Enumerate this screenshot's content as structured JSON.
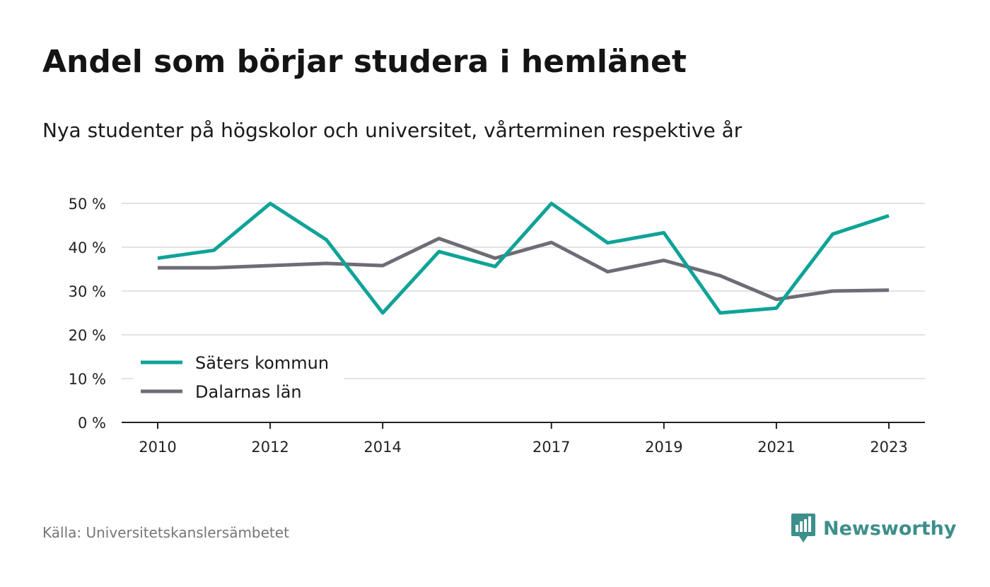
{
  "title": "Andel som börjar studera i hemlänet",
  "subtitle": "Nya studenter på högskolor och universitet, vårterminen respektive år",
  "source": "Källa: Universitetskanslersämbetet",
  "brand": {
    "name": "Newsworthy",
    "color": "#3d8f8b",
    "icon": "newsworthy-logo-icon"
  },
  "chart_data": {
    "type": "line",
    "x": [
      2010,
      2011,
      2012,
      2013,
      2014,
      2015,
      2016,
      2017,
      2018,
      2019,
      2020,
      2021,
      2022,
      2023
    ],
    "xticks": [
      2010,
      2012,
      2014,
      2017,
      2019,
      2021,
      2023
    ],
    "xtick_labels": [
      "2010",
      "2012",
      "2014",
      "2017",
      "2019",
      "2021",
      "2023"
    ],
    "ylim": [
      0,
      50
    ],
    "yticks": [
      0,
      10,
      20,
      30,
      40,
      50
    ],
    "ytick_labels": [
      "0 %",
      "10 %",
      "20 %",
      "30 %",
      "40 %",
      "50 %"
    ],
    "grid": true,
    "legend_position": "bottom-left",
    "series": [
      {
        "name": "Säters kommun",
        "color": "#0fa397",
        "values": [
          37.5,
          39.3,
          50.0,
          41.7,
          25.0,
          39.0,
          35.6,
          50.0,
          41.0,
          43.3,
          25.0,
          26.1,
          43.0,
          47.2
        ]
      },
      {
        "name": "Dalarnas län",
        "color": "#6e6d76",
        "values": [
          35.3,
          35.3,
          35.8,
          36.3,
          35.8,
          42.0,
          37.5,
          41.1,
          34.4,
          37.0,
          33.5,
          28.1,
          30.0,
          30.2
        ]
      }
    ]
  }
}
